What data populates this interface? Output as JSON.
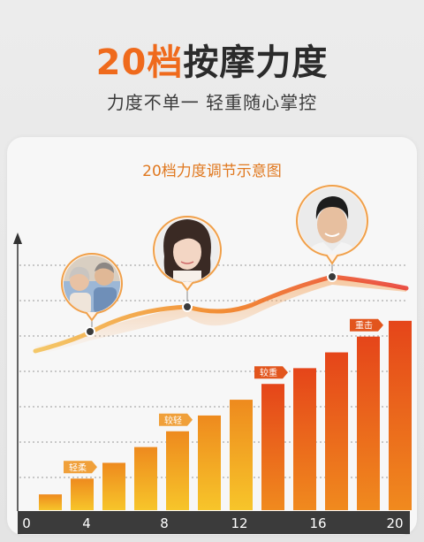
{
  "header": {
    "headline_number": "20档",
    "headline_text": "按摩力度",
    "subtitle": "力度不单一 轻重随心掌控"
  },
  "colors": {
    "accent": "#ef6a1c",
    "bar_low": "#f5c42a",
    "bar_high": "#e8501c",
    "axis_bar": "#3b3b3b"
  },
  "chart_data": {
    "type": "bar",
    "title": "20档力度调节示意图",
    "x_ticks": [
      "0",
      "4",
      "8",
      "12",
      "16",
      "20"
    ],
    "xlim": [
      0,
      20
    ],
    "values": [
      1,
      2,
      3,
      4,
      5,
      6,
      7,
      8,
      9,
      10,
      11,
      12
    ],
    "ylim": [
      0,
      13
    ],
    "grid": true,
    "bar_labels": [
      {
        "bar_index": 1,
        "text": "轻柔"
      },
      {
        "bar_index": 4,
        "text": "较轻"
      },
      {
        "bar_index": 7,
        "text": "较重"
      },
      {
        "bar_index": 10,
        "text": "重击"
      }
    ],
    "trend_points": [
      {
        "label": "elderly-couple-avatar"
      },
      {
        "label": "young-woman-avatar"
      },
      {
        "label": "young-man-avatar"
      }
    ]
  }
}
